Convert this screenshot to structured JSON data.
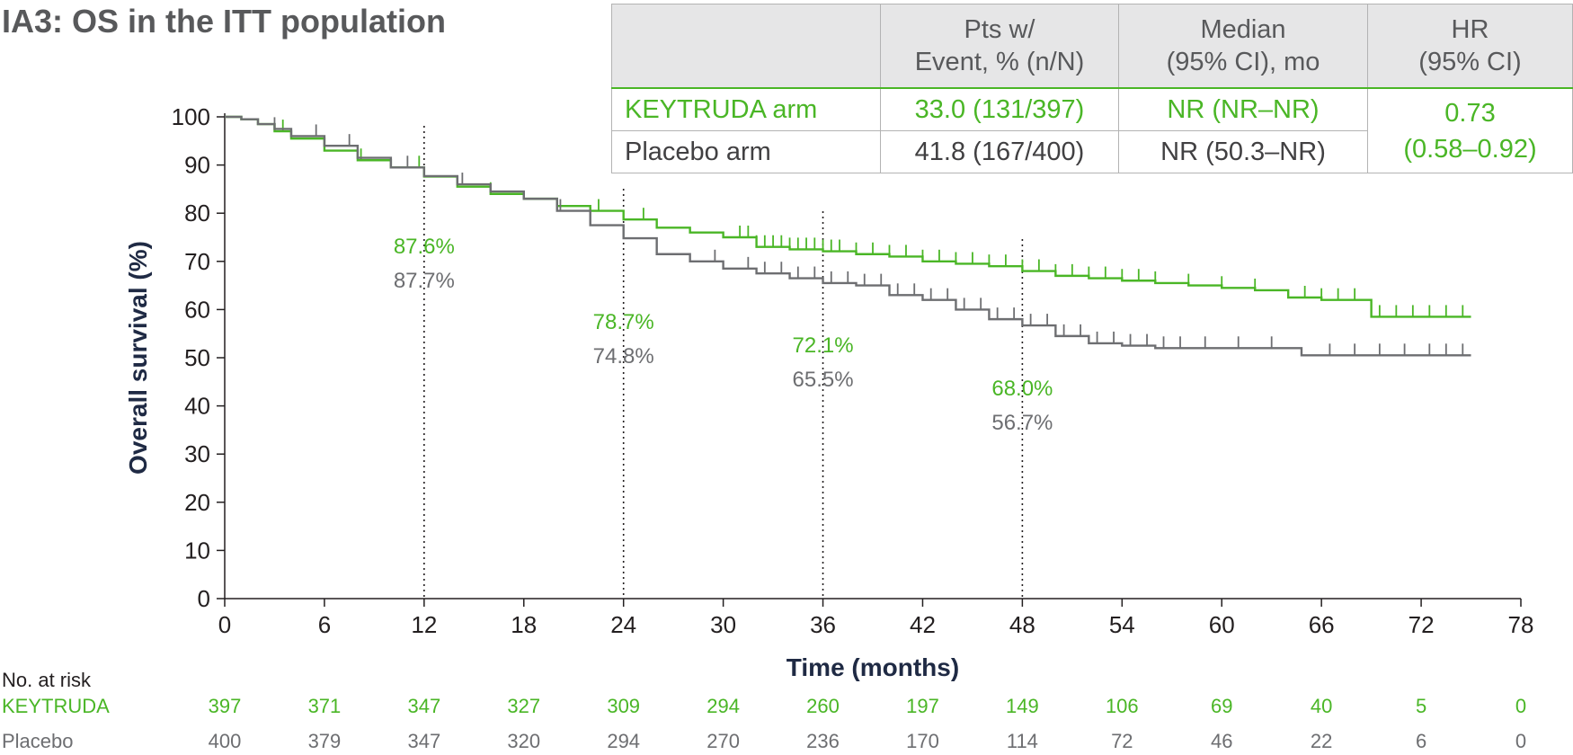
{
  "title": "IA3: OS in the ITT population",
  "table": {
    "headers": [
      "",
      "Pts w/\nEvent, % (n/N)",
      "Median\n(95% CI), mo",
      "HR\n(95% CI)"
    ],
    "rows": [
      {
        "arm": "KEYTRUDA arm",
        "events": "33.0 (131/397)",
        "median": "NR (NR–NR)"
      },
      {
        "arm": "Placebo arm",
        "events": "41.8 (167/400)",
        "median": "NR (50.3–NR)"
      }
    ],
    "hr": "0.73",
    "hr_ci": "(0.58–0.92)"
  },
  "colors": {
    "keytruda": "#4ab626",
    "placebo": "#6d6e71",
    "axis": "#231f20",
    "axis_title": "#1f2a44"
  },
  "chart_data": {
    "type": "line",
    "xlabel": "Time (months)",
    "ylabel": "Overall survival (%)",
    "xlim": [
      0,
      78
    ],
    "ylim": [
      0,
      100
    ],
    "xticks": [
      0,
      6,
      12,
      18,
      24,
      30,
      36,
      42,
      48,
      54,
      60,
      66,
      72,
      78
    ],
    "yticks": [
      0,
      10,
      20,
      30,
      40,
      50,
      60,
      70,
      80,
      90,
      100
    ],
    "landmarks": [
      12,
      24,
      36,
      48
    ],
    "series": [
      {
        "name": "KEYTRUDA",
        "color": "#4ab626",
        "x": [
          0,
          1,
          2,
          3,
          4,
          6,
          8,
          10,
          12,
          14,
          16,
          18,
          20,
          22,
          24,
          26,
          28,
          30,
          32,
          34,
          36,
          38,
          40,
          42,
          44,
          46,
          48,
          50,
          52,
          54,
          56,
          58,
          60,
          62,
          64,
          66,
          68,
          69,
          70,
          72,
          75
        ],
        "y": [
          100,
          99.5,
          98.5,
          97,
          95.5,
          93,
          91,
          89.5,
          87.6,
          85.5,
          84,
          83,
          81.5,
          80.5,
          78.7,
          77,
          76,
          75,
          73,
          72.5,
          72.1,
          71.5,
          71,
          70,
          69.5,
          69,
          68,
          67,
          66.5,
          66,
          65.5,
          65,
          64.5,
          64,
          62.5,
          62,
          62,
          58.5,
          58.5,
          58.5,
          58.5
        ],
        "censor_x": [
          3.5,
          8.2,
          11.7,
          16,
          22.5,
          25.2,
          31.0,
          31.5,
          32.0,
          32.5,
          33.0,
          33.5,
          34.0,
          34.5,
          35.0,
          35.5,
          36.0,
          36.5,
          37.0,
          38.0,
          39.0,
          40.0,
          41.0,
          42.0,
          43.0,
          44.0,
          45.0,
          46.0,
          47.0,
          48.0,
          49.0,
          50.0,
          51.0,
          52.0,
          53.0,
          54.0,
          55.0,
          56.0,
          58.0,
          60.0,
          62.0,
          65.0,
          66.0,
          67.0,
          68.0,
          69.5,
          70.5,
          71.5,
          72.5,
          73.5,
          74.5
        ]
      },
      {
        "name": "Placebo",
        "color": "#6d6e71",
        "x": [
          0,
          1,
          2,
          3,
          4,
          6,
          8,
          10,
          12,
          14,
          16,
          18,
          20,
          22,
          24,
          26,
          28,
          30,
          32,
          34,
          36,
          38,
          40,
          42,
          44,
          46,
          48,
          50,
          52,
          54,
          56,
          58,
          60,
          62,
          64,
          64.8,
          66,
          70,
          75
        ],
        "y": [
          100,
          99.5,
          98.5,
          97.5,
          96,
          94,
          91.5,
          89.5,
          87.7,
          86,
          84.5,
          83,
          80.5,
          77.5,
          74.8,
          71.5,
          70,
          68.5,
          67.5,
          66.5,
          65.5,
          65,
          63,
          62,
          60,
          58,
          56.7,
          54.5,
          53,
          52.5,
          52,
          52,
          52,
          52,
          52,
          50.5,
          50.5,
          50.5,
          50.5
        ],
        "censor_x": [
          3.0,
          5.5,
          7.5,
          11.0,
          14.3,
          20.2,
          29.5,
          31.5,
          32.5,
          33.5,
          34.5,
          35.5,
          36.5,
          37.5,
          38.5,
          39.5,
          40.5,
          41.5,
          42.5,
          43.5,
          44.5,
          45.5,
          46.5,
          47.5,
          48.5,
          49.5,
          50.5,
          51.5,
          52.5,
          53.5,
          54.5,
          55.5,
          56.5,
          57.5,
          59.0,
          61.0,
          63.0,
          66.5,
          68.0,
          69.5,
          71.0,
          72.5,
          73.5,
          74.5
        ]
      }
    ],
    "annotations": [
      {
        "x": 12,
        "keytruda": "87.6%",
        "placebo": "87.7%"
      },
      {
        "x": 24,
        "keytruda": "78.7%",
        "placebo": "74.8%"
      },
      {
        "x": 36,
        "keytruda": "72.1%",
        "placebo": "65.5%"
      },
      {
        "x": 48,
        "keytruda": "68.0%",
        "placebo": "56.7%"
      }
    ]
  },
  "risk_table": {
    "title": "No. at risk",
    "rows": [
      {
        "label": "KEYTRUDA",
        "values": [
          "397",
          "371",
          "347",
          "327",
          "309",
          "294",
          "260",
          "197",
          "149",
          "106",
          "69",
          "40",
          "5",
          "0"
        ]
      },
      {
        "label": "Placebo",
        "values": [
          "400",
          "379",
          "347",
          "320",
          "294",
          "270",
          "236",
          "170",
          "114",
          "72",
          "46",
          "22",
          "6",
          "0"
        ]
      }
    ]
  }
}
